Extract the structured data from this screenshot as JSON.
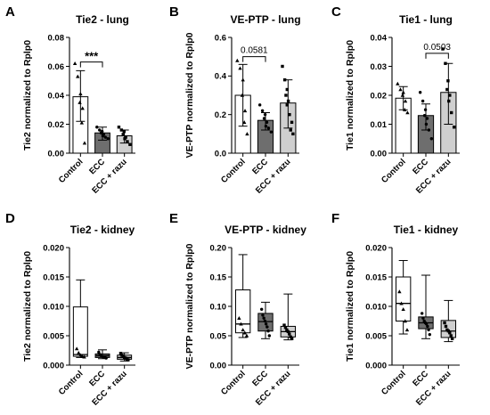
{
  "chart_data": [
    {
      "letter": "A",
      "type": "bar",
      "title": "Tie2 - lung",
      "ylabel": "Tie2 normalized to Rplp0",
      "categories": [
        "Control",
        "ECC",
        "ECC + razu"
      ],
      "ylim": [
        0,
        0.08
      ],
      "yticks": [
        0.0,
        0.02,
        0.04,
        0.06,
        0.08
      ],
      "tick_labels": [
        "0.00",
        "0.02",
        "0.04",
        "0.06",
        "0.08"
      ],
      "means": [
        0.039,
        0.014,
        0.012
      ],
      "err_low": [
        0.022,
        0.009,
        0.007
      ],
      "err_high": [
        0.057,
        0.018,
        0.016
      ],
      "points": [
        [
          0.062,
          0.053,
          0.041,
          0.035,
          0.031,
          0.021,
          0.007
        ],
        [
          0.018,
          0.016,
          0.015,
          0.014,
          0.013,
          0.012,
          0.011,
          0.01
        ],
        [
          0.018,
          0.016,
          0.015,
          0.013,
          0.011,
          0.01,
          0.008,
          0.006
        ]
      ],
      "fills": [
        "#ffffff",
        "#6e6e6e",
        "#cfcfcf"
      ],
      "annotation": {
        "text": "***",
        "from": 0,
        "to": 1,
        "y": 0.063
      }
    },
    {
      "letter": "B",
      "type": "bar",
      "title": "VE-PTP - lung",
      "ylabel": "VE-PTP normalized to Rplp0",
      "categories": [
        "Control",
        "ECC",
        "ECC + razu"
      ],
      "ylim": [
        0,
        0.6
      ],
      "yticks": [
        0.0,
        0.2,
        0.4,
        0.6
      ],
      "tick_labels": [
        "0.0",
        "0.2",
        "0.4",
        "0.6"
      ],
      "means": [
        0.3,
        0.17,
        0.26
      ],
      "err_low": [
        0.14,
        0.12,
        0.13
      ],
      "err_high": [
        0.46,
        0.21,
        0.38
      ],
      "points": [
        [
          0.48,
          0.44,
          0.38,
          0.3,
          0.22,
          0.16,
          0.1
        ],
        [
          0.25,
          0.22,
          0.2,
          0.18,
          0.16,
          0.14,
          0.13,
          0.11
        ],
        [
          0.45,
          0.38,
          0.33,
          0.3,
          0.27,
          0.25,
          0.2,
          0.16,
          0.12,
          0.1
        ]
      ],
      "fills": [
        "#ffffff",
        "#6e6e6e",
        "#cfcfcf"
      ],
      "annotation": {
        "text": "0.0581",
        "from": 0,
        "to": 1,
        "y": 0.5
      }
    },
    {
      "letter": "C",
      "type": "bar",
      "title": "Tie1 - lung",
      "ylabel": "Tie1 normalized to Rplp0",
      "categories": [
        "Control",
        "ECC",
        "ECC + razu"
      ],
      "ylim": [
        0,
        0.04
      ],
      "yticks": [
        0.0,
        0.01,
        0.02,
        0.03,
        0.04
      ],
      "tick_labels": [
        "0.00",
        "0.01",
        "0.02",
        "0.03",
        "0.04"
      ],
      "means": [
        0.019,
        0.013,
        0.021
      ],
      "err_low": [
        0.015,
        0.008,
        0.01
      ],
      "err_high": [
        0.023,
        0.017,
        0.031
      ],
      "points": [
        [
          0.024,
          0.022,
          0.021,
          0.02,
          0.018,
          0.015,
          0.014
        ],
        [
          0.021,
          0.018,
          0.015,
          0.013,
          0.012,
          0.01,
          0.008,
          0.005
        ],
        [
          0.036,
          0.031,
          0.025,
          0.022,
          0.02,
          0.018,
          0.014,
          0.009
        ]
      ],
      "fills": [
        "#ffffff",
        "#6e6e6e",
        "#cfcfcf"
      ],
      "annotation": {
        "text": "0.0503",
        "from": 1,
        "to": 2,
        "y": 0.0345
      }
    },
    {
      "letter": "D",
      "type": "box",
      "title": "Tie2 - kidney",
      "ylabel": "Tie2 normalized to Rplp0",
      "categories": [
        "Control",
        "ECC",
        "ECC + razu"
      ],
      "ylim": [
        0,
        0.02
      ],
      "yticks": [
        0.0,
        0.005,
        0.01,
        0.015,
        0.02
      ],
      "tick_labels": [
        "0.000",
        "0.005",
        "0.010",
        "0.015",
        "0.020"
      ],
      "boxes": [
        {
          "min": 0.0013,
          "q1": 0.0015,
          "median": 0.0018,
          "q3": 0.0099,
          "max": 0.0145
        },
        {
          "min": 0.0011,
          "q1": 0.0013,
          "median": 0.0016,
          "q3": 0.0019,
          "max": 0.0026
        },
        {
          "min": 0.0007,
          "q1": 0.001,
          "median": 0.0013,
          "q3": 0.0017,
          "max": 0.0021
        }
      ],
      "points": [
        [
          0.0028,
          0.0021,
          0.0017,
          0.0015,
          0.0014
        ],
        [
          0.0022,
          0.0018,
          0.0016,
          0.0015,
          0.0014,
          0.0013,
          0.0012
        ],
        [
          0.002,
          0.0017,
          0.0015,
          0.0013,
          0.0012,
          0.001,
          0.0009
        ]
      ],
      "fills": [
        "#ffffff",
        "#6e6e6e",
        "#cfcfcf"
      ]
    },
    {
      "letter": "E",
      "type": "box",
      "title": "VE-PTP - kidney",
      "ylabel": "VE-PTP normalized to Rplp0",
      "categories": [
        "Control",
        "ECC",
        "ECC + razu"
      ],
      "ylim": [
        0,
        0.2
      ],
      "yticks": [
        0.0,
        0.05,
        0.1,
        0.15,
        0.2
      ],
      "tick_labels": [
        "0.00",
        "0.05",
        "0.10",
        "0.15",
        "0.20"
      ],
      "boxes": [
        {
          "min": 0.047,
          "q1": 0.055,
          "median": 0.07,
          "q3": 0.128,
          "max": 0.188
        },
        {
          "min": 0.045,
          "q1": 0.058,
          "median": 0.074,
          "q3": 0.088,
          "max": 0.107
        },
        {
          "min": 0.043,
          "q1": 0.048,
          "median": 0.057,
          "q3": 0.066,
          "max": 0.121
        }
      ],
      "points": [
        [
          0.08,
          0.07,
          0.06,
          0.055,
          0.05
        ],
        [
          0.095,
          0.085,
          0.08,
          0.075,
          0.07,
          0.065,
          0.058,
          0.05
        ],
        [
          0.068,
          0.064,
          0.06,
          0.057,
          0.053,
          0.048,
          0.045
        ]
      ],
      "fills": [
        "#ffffff",
        "#6e6e6e",
        "#cfcfcf"
      ]
    },
    {
      "letter": "F",
      "type": "box",
      "title": "Tie1 - kidney",
      "ylabel": "Tie1 normalized to Rplp0",
      "categories": [
        "Control",
        "ECC",
        "ECC + razu"
      ],
      "ylim": [
        0,
        0.02
      ],
      "yticks": [
        0.0,
        0.005,
        0.01,
        0.015,
        0.02
      ],
      "tick_labels": [
        "0.000",
        "0.005",
        "0.010",
        "0.015",
        "0.020"
      ],
      "boxes": [
        {
          "min": 0.0053,
          "q1": 0.0075,
          "median": 0.0105,
          "q3": 0.015,
          "max": 0.0178
        },
        {
          "min": 0.0045,
          "q1": 0.0062,
          "median": 0.0072,
          "q3": 0.0082,
          "max": 0.0153
        },
        {
          "min": 0.004,
          "q1": 0.0047,
          "median": 0.0058,
          "q3": 0.0076,
          "max": 0.011
        }
      ],
      "points": [
        [
          0.0125,
          0.0105,
          0.0095,
          0.0075,
          0.006
        ],
        [
          0.0088,
          0.008,
          0.0075,
          0.0072,
          0.007,
          0.0066,
          0.006,
          0.0052
        ],
        [
          0.0072,
          0.0066,
          0.006,
          0.0058,
          0.0055,
          0.005,
          0.0045
        ]
      ],
      "fills": [
        "#ffffff",
        "#6e6e6e",
        "#cfcfcf"
      ]
    }
  ]
}
